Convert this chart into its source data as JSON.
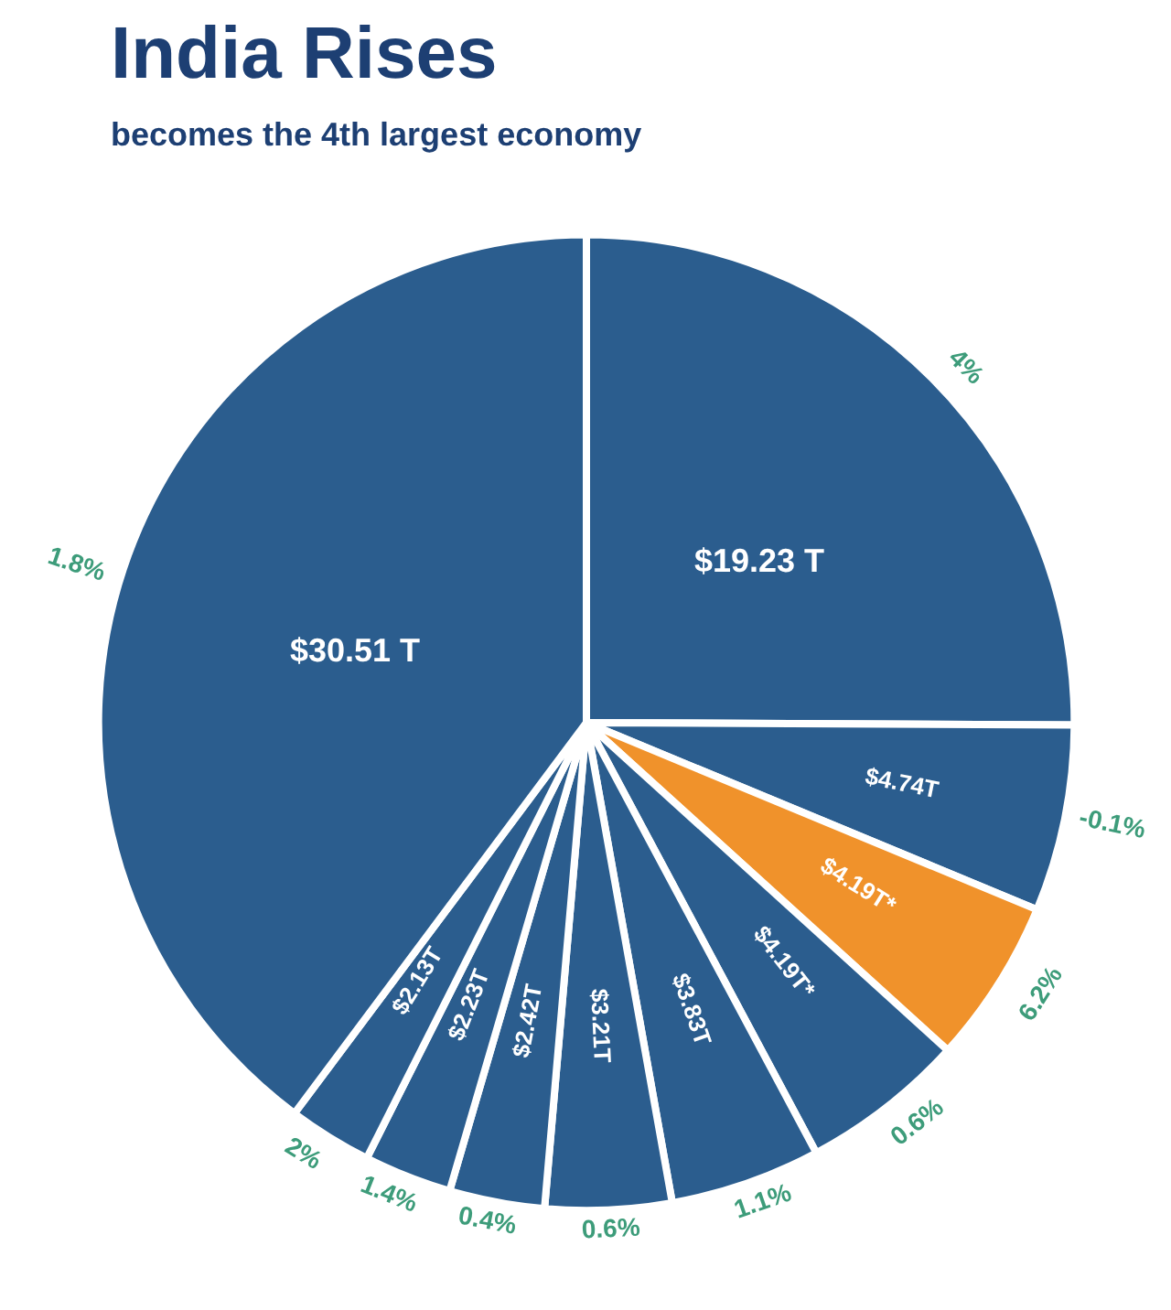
{
  "chart_data": {
    "type": "pie",
    "title": "India Rises",
    "subtitle": "becomes the 4th largest economy",
    "categories": [
      null,
      null,
      null,
      null,
      null,
      null,
      null,
      null,
      null,
      null
    ],
    "values": [
      19.23,
      4.74,
      4.19,
      4.19,
      3.83,
      3.21,
      2.42,
      2.23,
      2.13,
      30.51
    ],
    "value_labels": [
      "$19.23 T",
      "$4.74T",
      "$4.19T*",
      "$4.19T*",
      "$3.83T",
      "$3.21T",
      "$2.42T",
      "$2.23T",
      "$2.13T",
      "$30.51 T"
    ],
    "colors": [
      "#2b5d8e",
      "#2b5d8e",
      "#f0922b",
      "#2b5d8e",
      "#2b5d8e",
      "#2b5d8e",
      "#2b5d8e",
      "#2b5d8e",
      "#2b5d8e",
      "#2b5d8e"
    ],
    "annotations": [
      "4%",
      "-0.1%",
      "6.2%",
      "0.6%",
      "1.1%",
      "0.6%",
      "0.4%",
      "1.4%",
      "2%",
      "1.8%"
    ]
  }
}
